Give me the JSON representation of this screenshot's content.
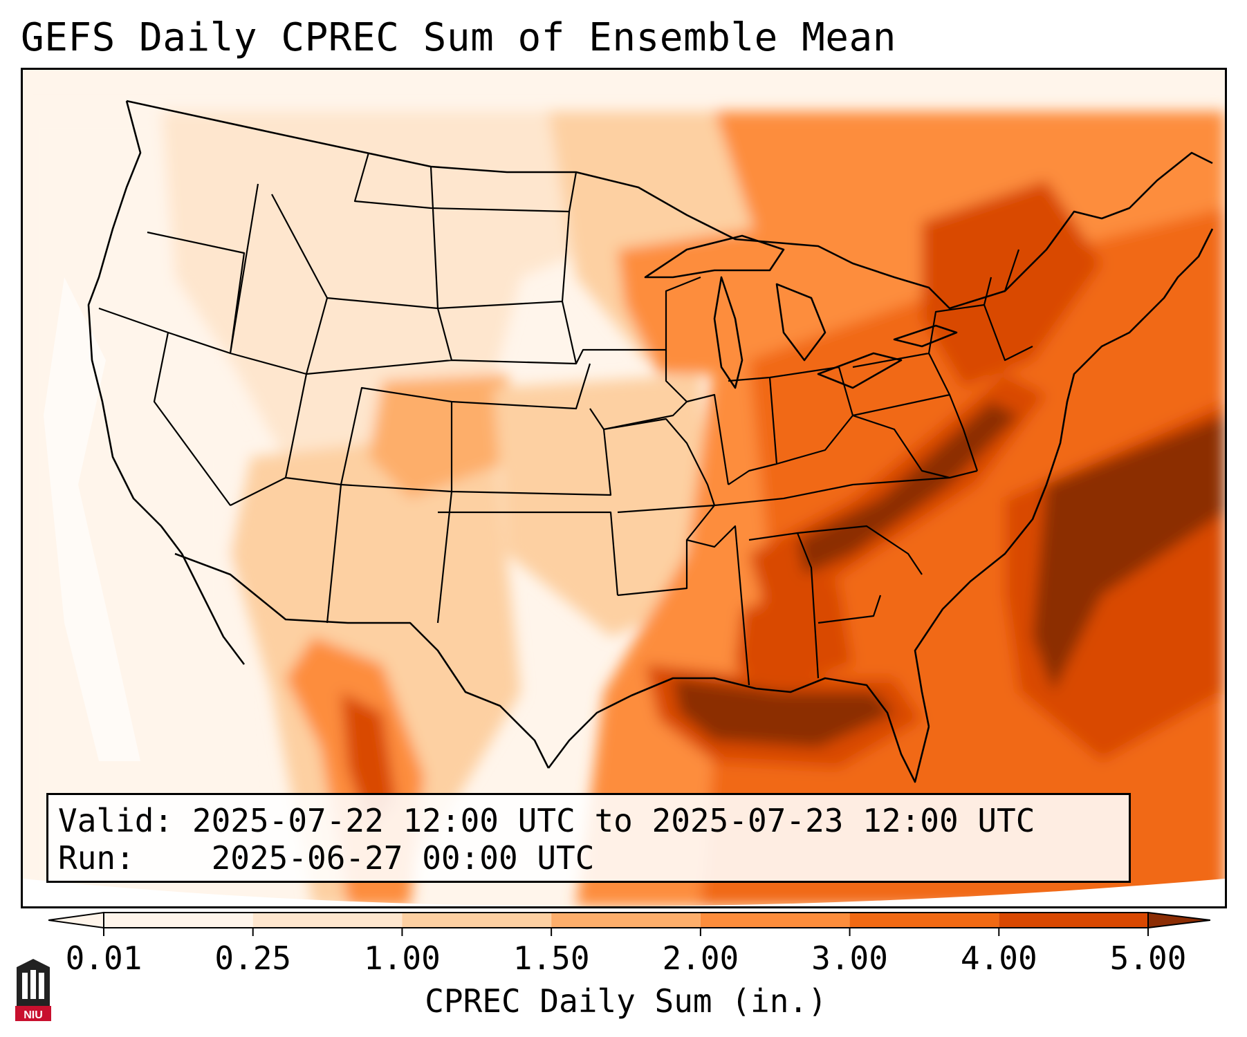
{
  "title": "GEFS Daily CPREC Sum of Ensemble Mean",
  "info": {
    "valid_label": "Valid:",
    "valid_value": "2025-07-22 12:00 UTC to 2025-07-23 12:00 UTC",
    "run_label": "Run:",
    "run_value": "2025-06-27 00:00 UTC"
  },
  "colorbar": {
    "label": "CPREC Daily Sum (in.)",
    "ticks": [
      "0.01",
      "0.25",
      "1.00",
      "1.50",
      "2.00",
      "3.00",
      "4.00",
      "5.00"
    ],
    "colors": [
      "#fff5eb",
      "#fee6ce",
      "#fdd0a2",
      "#fdae6b",
      "#fd8d3c",
      "#f16913",
      "#d94801",
      "#8c2d04"
    ],
    "extend": "both"
  },
  "logo": {
    "text": "NIU",
    "colors": {
      "red": "#c8102e",
      "dark": "#222222"
    }
  },
  "map": {
    "projection": "Lambert conformal, CONUS",
    "overlay": "state and country boundaries",
    "colors": {
      "boundary": "#000000",
      "background": "#fff2e6"
    }
  }
}
